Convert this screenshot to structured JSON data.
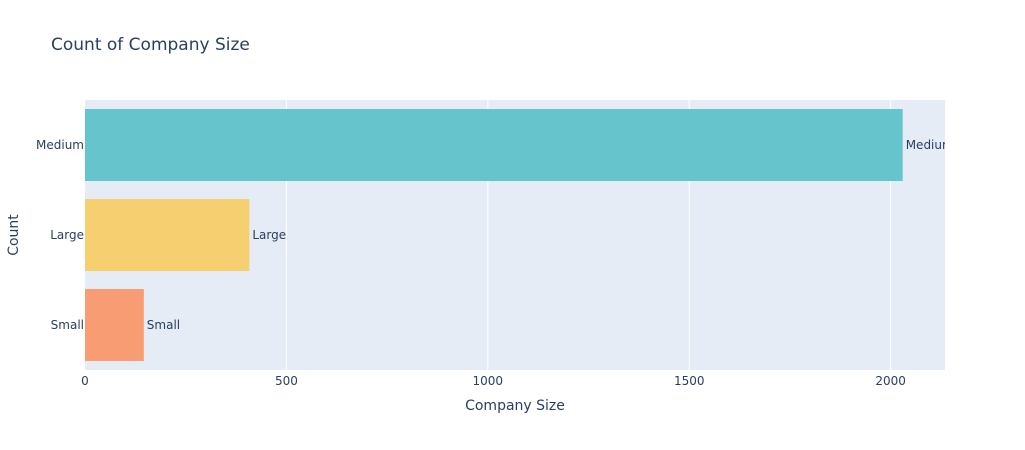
{
  "chart_data": {
    "type": "bar",
    "orientation": "horizontal",
    "title": "Count of Company Size",
    "xlabel": "Company Size",
    "ylabel": "Count",
    "categories": [
      "Medium",
      "Large",
      "Small"
    ],
    "values": [
      2030,
      408,
      146
    ],
    "data_labels": [
      "Medium",
      "Large",
      "Small"
    ],
    "colors": [
      "#66c5cc",
      "#f6cf71",
      "#f89c74"
    ],
    "xlim": [
      0,
      2135
    ],
    "xticks": [
      0,
      500,
      1000,
      1500,
      2000
    ],
    "xtick_labels": [
      "0",
      "500",
      "1000",
      "1500",
      "2000"
    ],
    "grid": true,
    "plot_bg": "#e5ecf6",
    "grid_color": "#ffffff"
  }
}
